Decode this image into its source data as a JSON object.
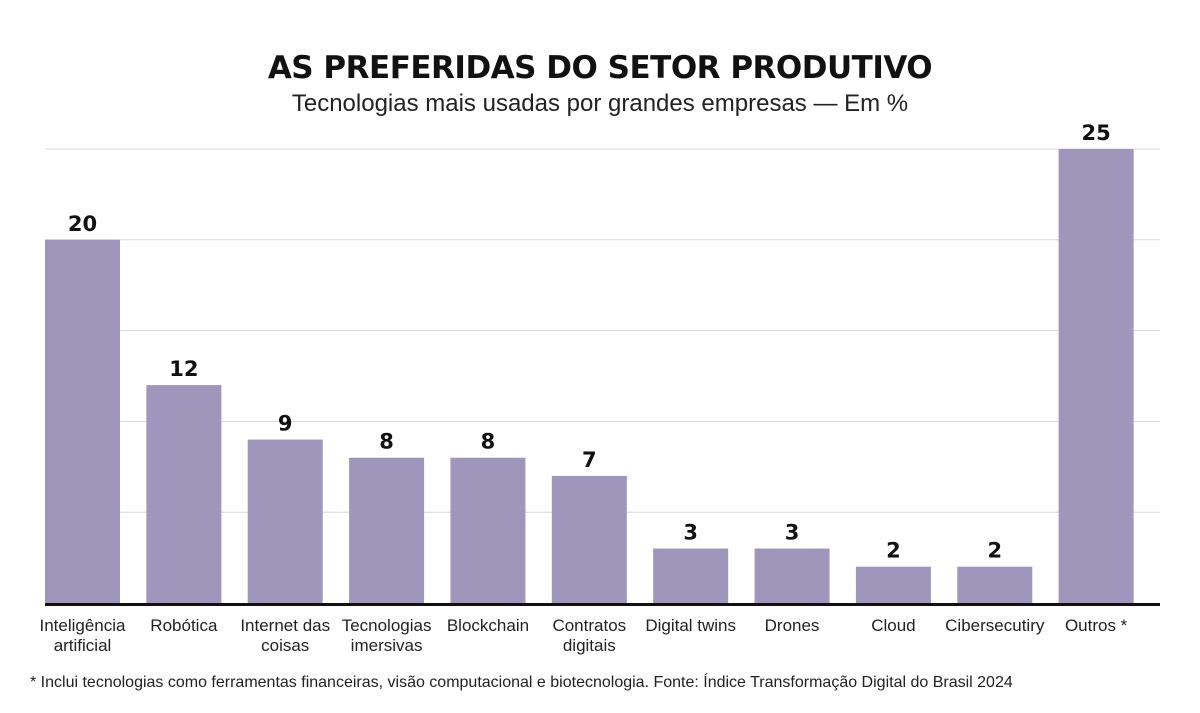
{
  "header": {
    "title": "AS PREFERIDAS DO SETOR PRODUTIVO",
    "subtitle": "Tecnologias mais usadas por grandes empresas — Em %"
  },
  "chart_data": {
    "type": "bar",
    "title": "AS PREFERIDAS DO SETOR PRODUTIVO",
    "subtitle": "Tecnologias mais usadas por grandes empresas — Em %",
    "categories": [
      "Inteligência artificial",
      "Robótica",
      "Internet das coisas",
      "Tecnologias imersivas",
      "Blockchain",
      "Contratos digitais",
      "Digital twins",
      "Drones",
      "Cloud",
      "Cibersecutiry",
      "Outros *"
    ],
    "category_lines": [
      [
        "Inteligência",
        "artificial"
      ],
      [
        "Robótica"
      ],
      [
        "Internet das",
        "coisas"
      ],
      [
        "Tecnologias",
        "imersivas"
      ],
      [
        "Blockchain"
      ],
      [
        "Contratos",
        "digitais"
      ],
      [
        "Digital twins"
      ],
      [
        "Drones"
      ],
      [
        "Cloud"
      ],
      [
        "Cibersecutiry"
      ],
      [
        "Outros *"
      ]
    ],
    "values": [
      20,
      12,
      9,
      8,
      8,
      7,
      3,
      3,
      2,
      2,
      25
    ],
    "ylim": [
      0,
      25
    ],
    "grid": true,
    "bar_color": "#9f97bb"
  },
  "footnote": "* Inclui tecnologias como ferramentas financeiras, visão computacional e biotecnologia. Fonte: Índice Transformação Digital do Brasil 2024"
}
